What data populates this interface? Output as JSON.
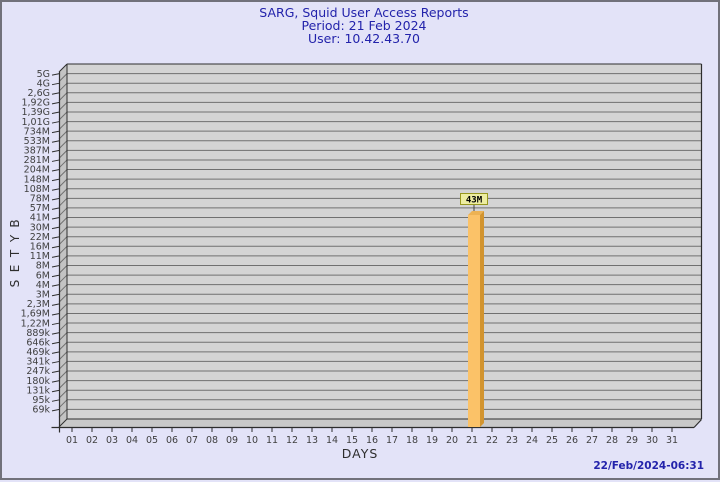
{
  "header": {
    "title": "SARG, Squid User Access Reports",
    "period": "Period: 21 Feb 2024",
    "user": "User: 10.42.43.70"
  },
  "footer": {
    "timestamp": "22/Feb/2024-06:31"
  },
  "chart_data": {
    "type": "bar",
    "title": "SARG, Squid User Access Reports",
    "subtitle": [
      "Period: 21 Feb 2024",
      "User: 10.42.43.70"
    ],
    "xlabel": "DAYS",
    "ylabel": "BYTES",
    "y_scale": "log",
    "grid": true,
    "legend_position": "none",
    "x_categories": [
      "01",
      "02",
      "03",
      "04",
      "05",
      "06",
      "07",
      "08",
      "09",
      "10",
      "11",
      "12",
      "13",
      "14",
      "15",
      "16",
      "17",
      "18",
      "19",
      "20",
      "21",
      "22",
      "23",
      "24",
      "25",
      "26",
      "27",
      "28",
      "29",
      "30",
      "31"
    ],
    "y_tick_labels": [
      "5G",
      "4G",
      "2,6G",
      "1,92G",
      "1,39G",
      "1,01G",
      "734M",
      "533M",
      "387M",
      "281M",
      "204M",
      "148M",
      "108M",
      "78M",
      "57M",
      "41M",
      "30M",
      "22M",
      "16M",
      "11M",
      "8M",
      "6M",
      "4M",
      "3M",
      "2,3M",
      "1,69M",
      "1,22M",
      "889k",
      "646k",
      "469k",
      "341k",
      "247k",
      "180k",
      "131k",
      "95k",
      "69k"
    ],
    "bars": [
      {
        "day": "21",
        "value_label": "43M",
        "value_bytes": 43000000
      }
    ],
    "colors": {
      "page_bg": "#E3E3F8",
      "title_text": "#2323AB",
      "plot_bg": "#D4D4D4",
      "grid_line": "#707070",
      "plot_edge": "#2E2E2E",
      "wall_fill": "#C3C3C3",
      "floor_fill": "#C9C9C9",
      "tick_text": "#3F3F3F",
      "bar_front": "#FBC268",
      "bar_side": "#D2942F",
      "bar_top": "#EDB253",
      "annotation_bg": "#EDEDA1",
      "annotation_border": "#97971F",
      "annotation_text": "#000000"
    }
  }
}
